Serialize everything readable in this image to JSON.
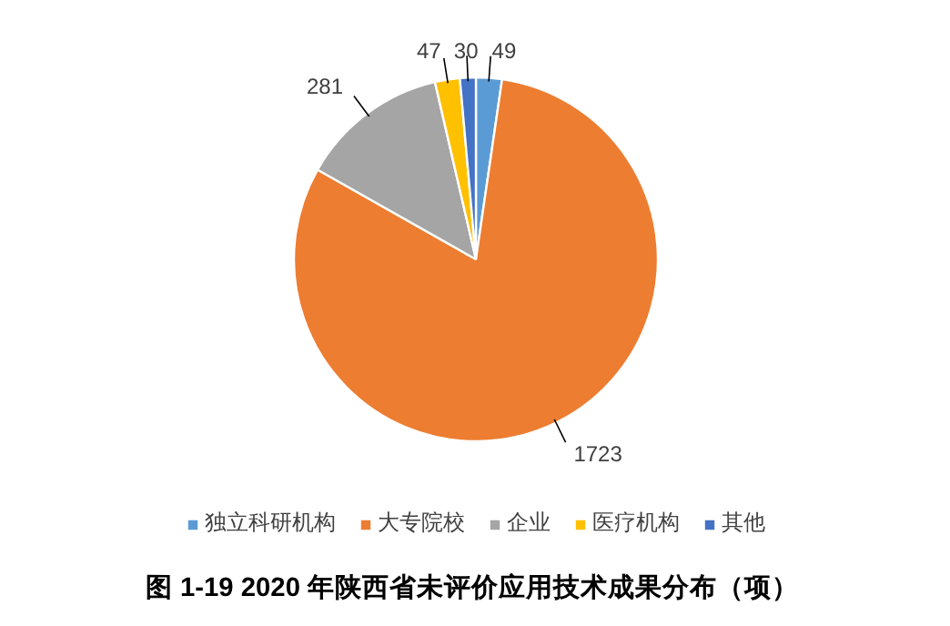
{
  "chart_data": {
    "type": "pie",
    "title": "图 1-19  2020 年陕西省未评价应用技术成果分布（项）",
    "categories": [
      "独立科研机构",
      "大专院校",
      "企业",
      "医疗机构",
      "其他"
    ],
    "values": [
      49,
      1723,
      281,
      47,
      30
    ],
    "colors": [
      "#5b9bd5",
      "#ed7d31",
      "#a5a5a5",
      "#ffc000",
      "#4472c4"
    ],
    "data_labels": true,
    "legend": "bottom"
  }
}
